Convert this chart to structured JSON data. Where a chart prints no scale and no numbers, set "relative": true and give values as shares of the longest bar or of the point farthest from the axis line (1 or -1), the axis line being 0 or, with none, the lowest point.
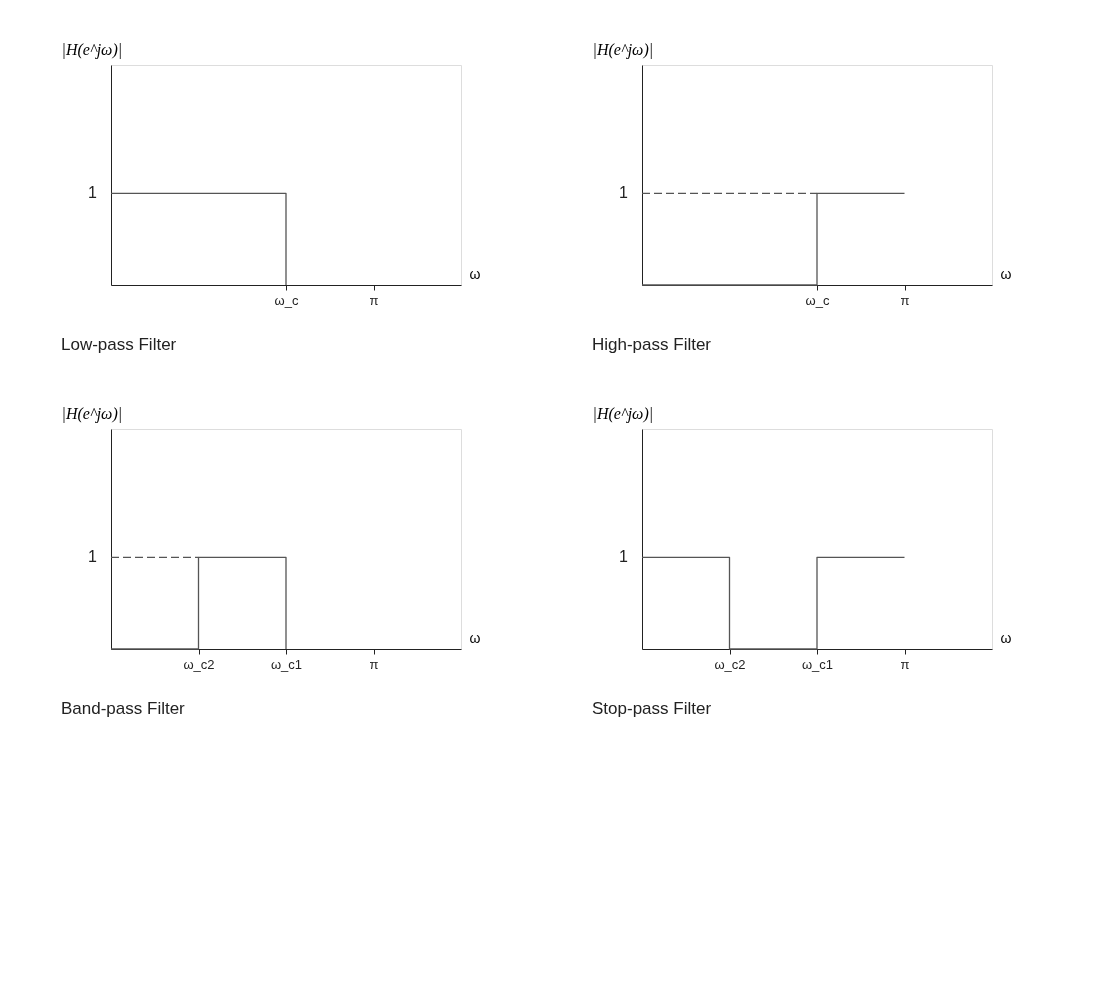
{
  "chart_data": [
    {
      "type": "step",
      "title": "Low-pass Filter",
      "ylabel": "|H(e^jω)|",
      "xlabel": "ω",
      "relative": true,
      "grid": false,
      "categories": [
        null,
        null,
        "ω_c",
        "π",
        null
      ],
      "series": [
        {
          "color": "#555555",
          "values": [
            1,
            1,
            0,
            null,
            null
          ],
          "line_style": "solid"
        }
      ],
      "annotations": [
        "1"
      ]
    },
    {
      "type": "step",
      "title": "High-pass Filter",
      "ylabel": "|H(e^jω)|",
      "xlabel": "ω",
      "relative": true,
      "grid": false,
      "categories": [
        null,
        null,
        "ω_c",
        "π",
        null
      ],
      "series": [
        {
          "color": "#555555",
          "values": [
            0,
            0,
            1,
            1,
            null
          ],
          "line_style": "solid"
        },
        {
          "color": "#555555",
          "values": [
            1,
            1,
            1,
            null,
            null
          ],
          "line_style": "dashed"
        }
      ],
      "annotations": [
        "1"
      ]
    },
    {
      "type": "step",
      "title": "Band-pass Filter",
      "ylabel": "|H(e^jω)|",
      "xlabel": "ω",
      "relative": true,
      "grid": false,
      "categories": [
        null,
        "ω_c2",
        "ω_c1",
        "π",
        null
      ],
      "series": [
        {
          "color": "#555555",
          "values": [
            0,
            1,
            0,
            null,
            null
          ],
          "line_style": "solid"
        },
        {
          "color": "#555555",
          "values": [
            1,
            1,
            null,
            null,
            null
          ],
          "line_style": "dashed"
        }
      ],
      "annotations": [
        "1"
      ]
    },
    {
      "type": "step",
      "title": "Stop-pass Filter",
      "ylabel": "|H(e^jω)|",
      "xlabel": "ω",
      "relative": true,
      "grid": false,
      "categories": [
        null,
        "ω_c2",
        "ω_c1",
        "π",
        null
      ],
      "series": [
        {
          "color": "#555555",
          "values": [
            1,
            0,
            1,
            1,
            null
          ],
          "line_style": "solid"
        }
      ],
      "annotations": [
        "1"
      ]
    }
  ]
}
